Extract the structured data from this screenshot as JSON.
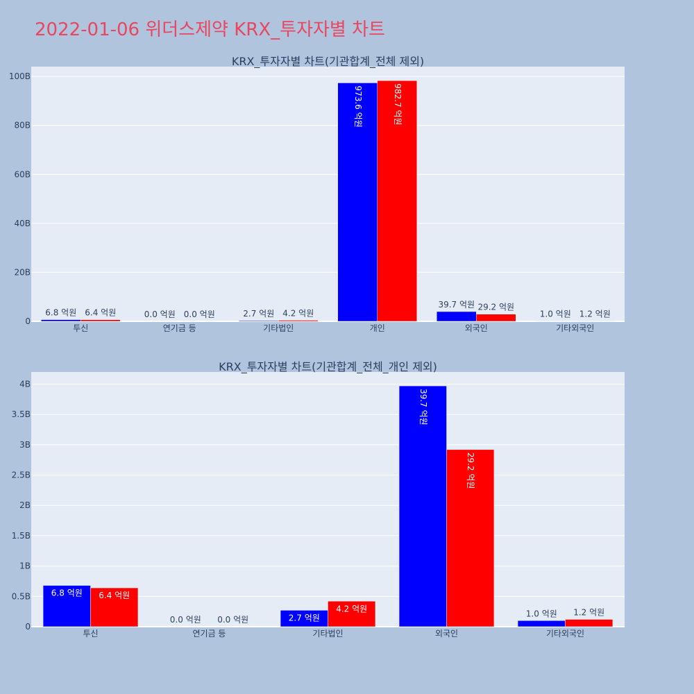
{
  "page": {
    "title": "2022-01-06 위더스제약 KRX_투자자별 차트"
  },
  "colors": {
    "series1": "#0000ff",
    "series2": "#ff0000",
    "plot_bg": "#e5ecf6",
    "title": "#e8475f"
  },
  "chart_data": [
    {
      "type": "bar",
      "title": "KRX_투자자별 차트(기관합계_전체 제외)",
      "categories": [
        "투신",
        "연기금 등",
        "기타법인",
        "개인",
        "외국인",
        "기타외국인"
      ],
      "series": [
        {
          "name": "series-1",
          "color": "#0000ff",
          "values": [
            0.68,
            0.0,
            0.27,
            97.36,
            3.97,
            0.1
          ],
          "labels": [
            "6.8 억원",
            "0.0 억원",
            "2.7 억원",
            "973.6 억원",
            "39.7 억원",
            "1.0 억원"
          ]
        },
        {
          "name": "series-2",
          "color": "#ff0000",
          "values": [
            0.64,
            0.0,
            0.42,
            98.27,
            2.92,
            0.12
          ],
          "labels": [
            "6.4 억원",
            "0.0 억원",
            "4.2 억원",
            "982.7 억원",
            "29.2 억원",
            "1.2 억원"
          ]
        }
      ],
      "value_unit": "B",
      "ylim": [
        0,
        104
      ],
      "yticks": [
        0,
        20,
        40,
        60,
        80,
        100
      ],
      "ytick_labels": [
        "0",
        "20B",
        "40B",
        "60B",
        "80B",
        "100B"
      ],
      "xlabel": "",
      "ylabel": ""
    },
    {
      "type": "bar",
      "title": "KRX_투자자별 차트(기관합계_전체_개인 제외)",
      "categories": [
        "투신",
        "연기금 등",
        "기타법인",
        "외국인",
        "기타외국인"
      ],
      "series": [
        {
          "name": "series-1",
          "color": "#0000ff",
          "values": [
            0.68,
            0.0,
            0.27,
            3.97,
            0.1
          ],
          "labels": [
            "6.8 억원",
            "0.0 억원",
            "2.7 억원",
            "39.7 억원",
            "1.0 억원"
          ]
        },
        {
          "name": "series-2",
          "color": "#ff0000",
          "values": [
            0.64,
            0.0,
            0.42,
            2.92,
            0.12
          ],
          "labels": [
            "6.4 억원",
            "0.0 억원",
            "4.2 억원",
            "29.2 억원",
            "1.2 억원"
          ]
        }
      ],
      "value_unit": "B",
      "ylim": [
        0,
        4.2
      ],
      "yticks": [
        0,
        0.5,
        1,
        1.5,
        2,
        2.5,
        3,
        3.5,
        4
      ],
      "ytick_labels": [
        "0",
        "0.5B",
        "1B",
        "1.5B",
        "2B",
        "2.5B",
        "3B",
        "3.5B",
        "4B"
      ],
      "xlabel": "",
      "ylabel": ""
    }
  ]
}
